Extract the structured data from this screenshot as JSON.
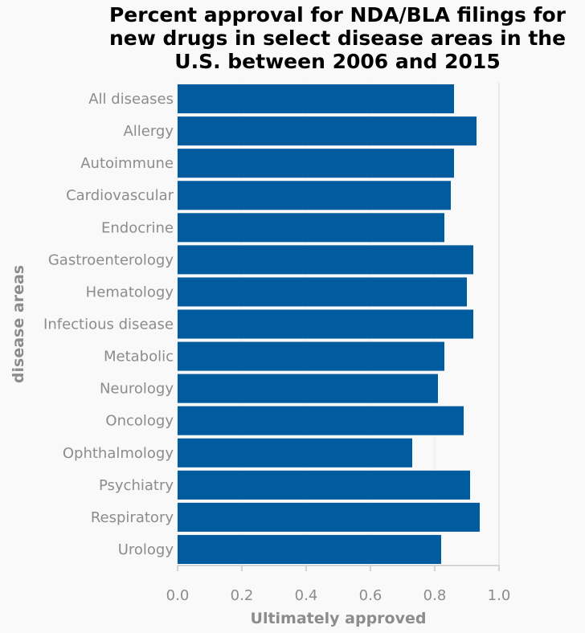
{
  "chart_data": {
    "type": "bar",
    "orientation": "horizontal",
    "title_lines": [
      "Percent approval for NDA/BLA filings for",
      "new drugs in select disease areas in the",
      "U.S. between 2006 and 2015"
    ],
    "xlabel": "Ultimately approved",
    "ylabel": "disease areas",
    "xlim": [
      0,
      1.0
    ],
    "x_ticks": [
      "0.0",
      "0.2",
      "0.4",
      "0.6",
      "0.8",
      "1.0"
    ],
    "categories": [
      "All diseases",
      "Allergy",
      "Autoimmune",
      "Cardiovascular",
      "Endocrine",
      "Gastroenterology",
      "Hematology",
      "Infectious disease",
      "Metabolic",
      "Neurology",
      "Oncology",
      "Ophthalmology",
      "Psychiatry",
      "Respiratory",
      "Urology"
    ],
    "values": [
      0.86,
      0.93,
      0.86,
      0.85,
      0.83,
      0.92,
      0.9,
      0.92,
      0.83,
      0.81,
      0.89,
      0.73,
      0.91,
      0.94,
      0.82
    ],
    "bar_color": "#005b9f",
    "grid": true,
    "legend": "none"
  }
}
